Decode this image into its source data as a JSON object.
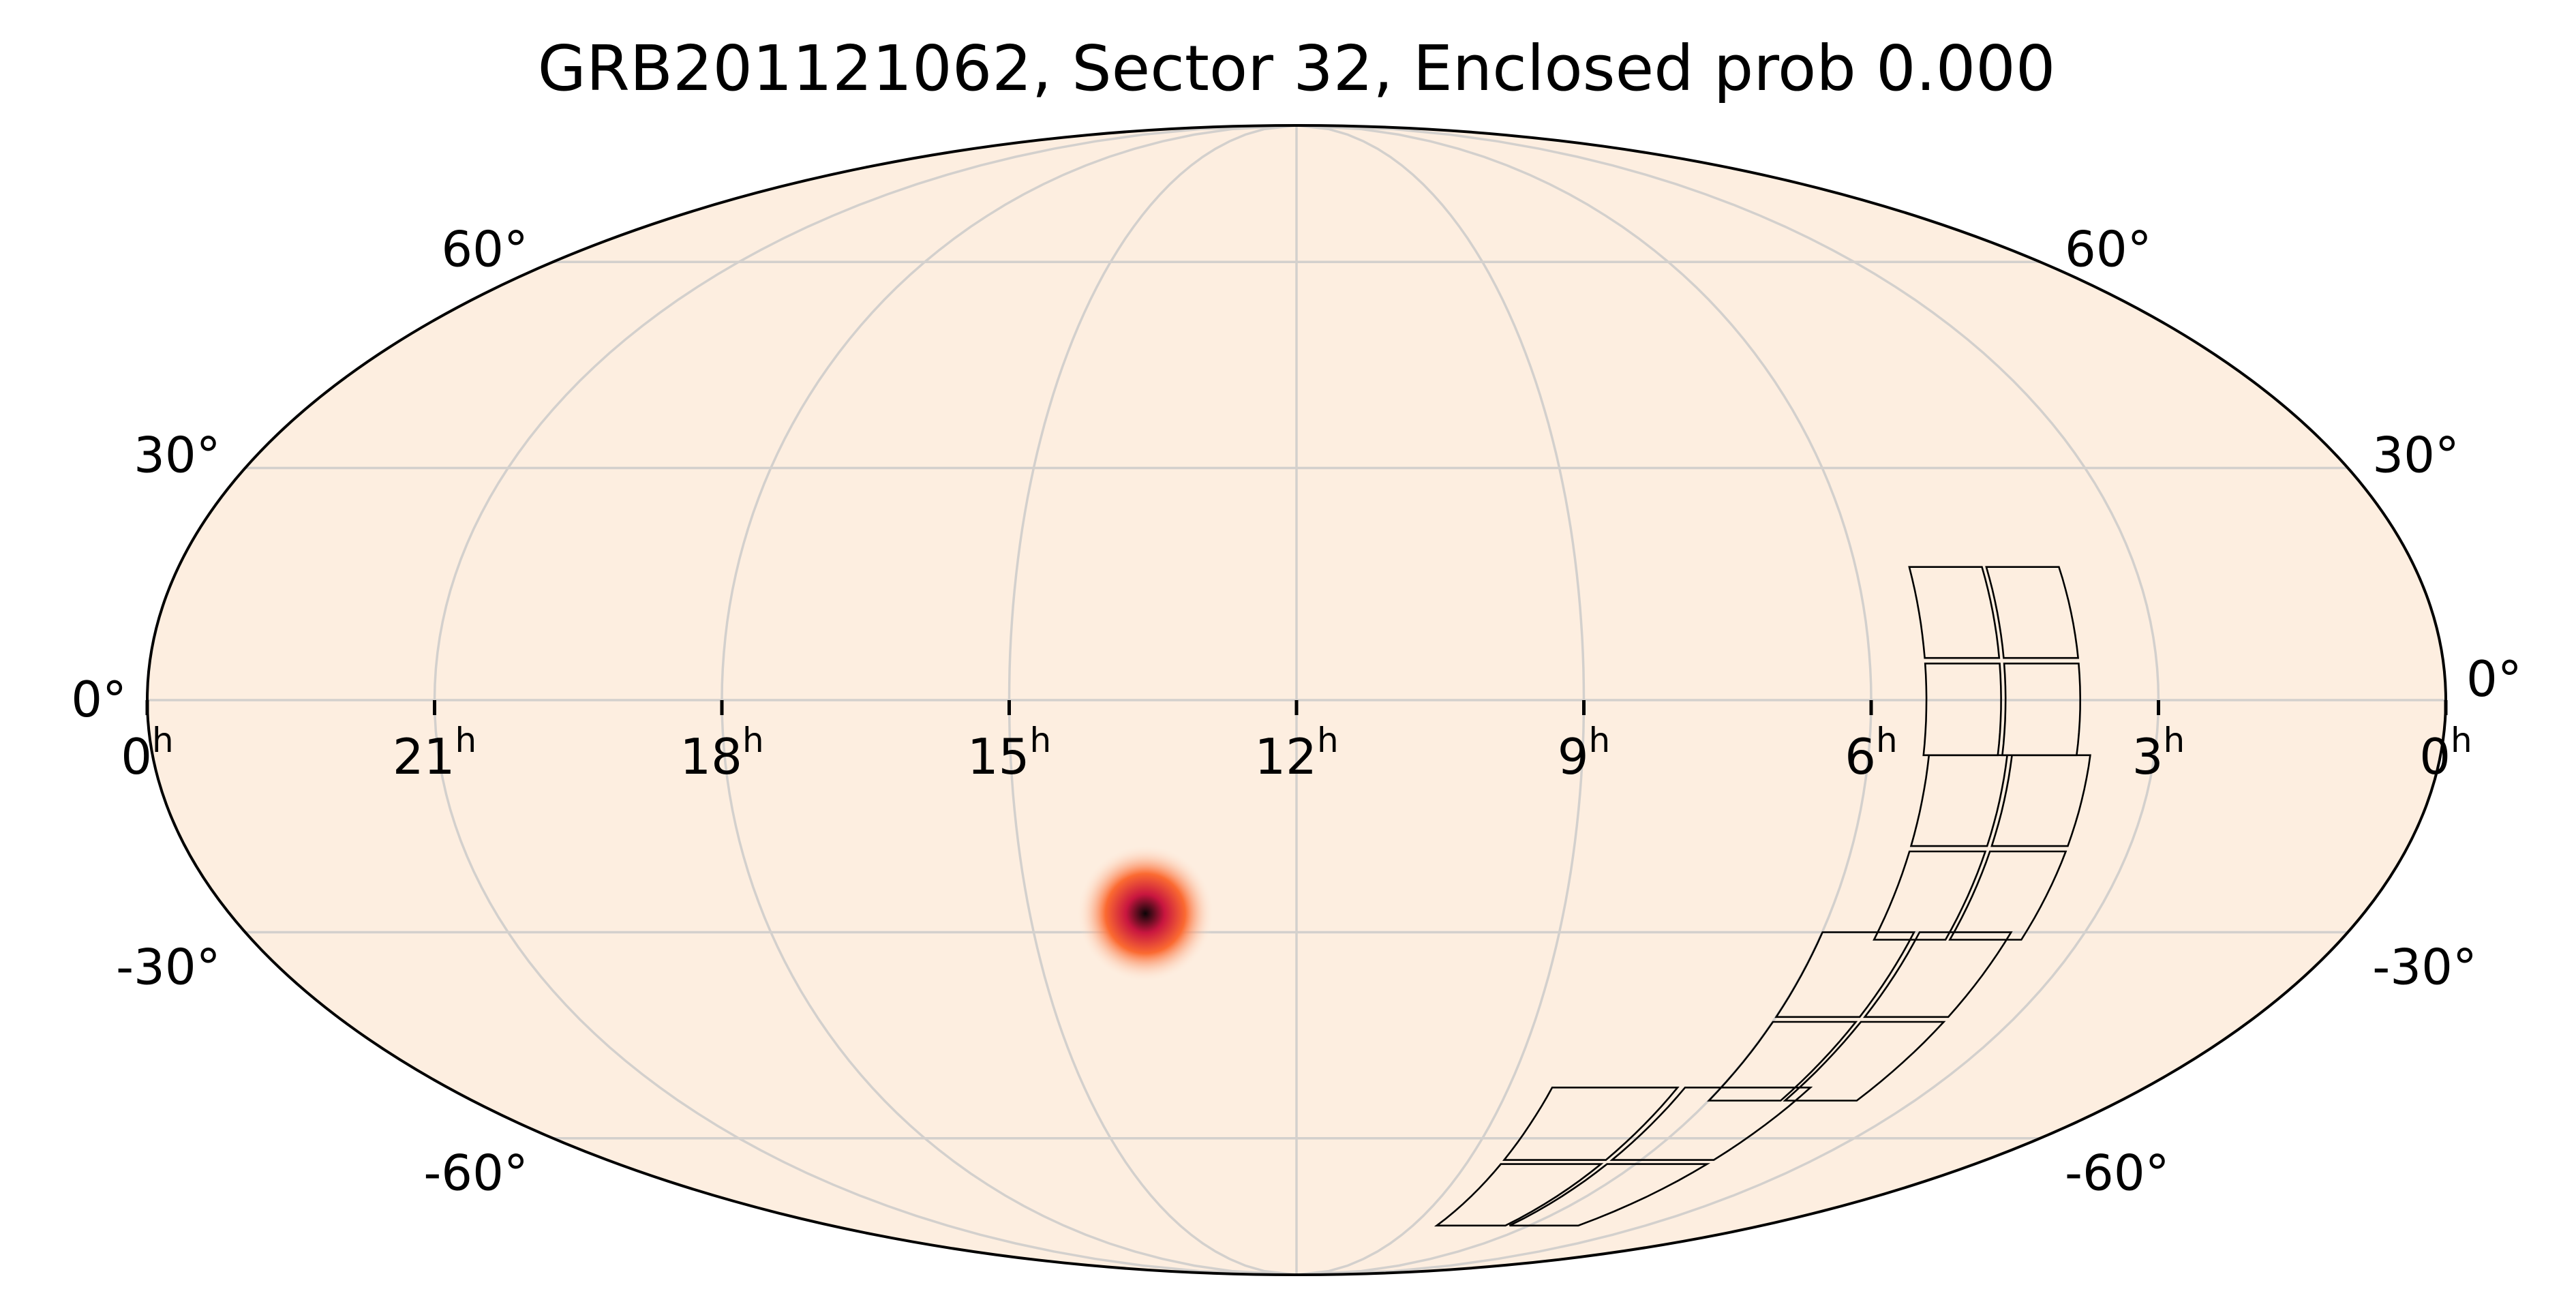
{
  "chart_data": {
    "type": "heatmap",
    "projection": "mollweide",
    "title": "GRB201121062, Sector 32, Enclosed prob 0.000",
    "ra_ticks": [
      {
        "ra": 0,
        "label": "0",
        "unit": "h",
        "side": "left"
      },
      {
        "ra": 21,
        "label": "21",
        "unit": "h"
      },
      {
        "ra": 18,
        "label": "18",
        "unit": "h"
      },
      {
        "ra": 15,
        "label": "15",
        "unit": "h"
      },
      {
        "ra": 12,
        "label": "12",
        "unit": "h"
      },
      {
        "ra": 9,
        "label": "9",
        "unit": "h"
      },
      {
        "ra": 6,
        "label": "6",
        "unit": "h"
      },
      {
        "ra": 3,
        "label": "3",
        "unit": "h"
      },
      {
        "ra": 0,
        "label": "0",
        "unit": "h",
        "side": "right"
      }
    ],
    "dec_ticks": [
      {
        "dec": 60,
        "label": "60°"
      },
      {
        "dec": 30,
        "label": "30°"
      },
      {
        "dec": 0,
        "label": "0°"
      },
      {
        "dec": -30,
        "label": "-30°"
      },
      {
        "dec": -60,
        "label": "-60°"
      }
    ],
    "grid": true,
    "colors": {
      "background": "#fdeee0",
      "grid": "#d3d0cd",
      "outline": "#000000",
      "footprint": "#000000",
      "hot_core": "#0c0507",
      "hot_mid": "#c8163f",
      "hot_outer": "#fb6a31"
    },
    "probability_peak": {
      "ra_hours": 13.7,
      "dec_deg": -27.5,
      "radius_deg": 9
    },
    "sector": {
      "camera_centers": [
        {
          "ra": 4.62,
          "dec": 5
        },
        {
          "ra": 4.52,
          "dec": -19
        },
        {
          "ra": 4.92,
          "dec": -42
        },
        {
          "ra": 6.56,
          "dec": -64
        }
      ],
      "width_deg": 24,
      "height_deg": 24
    }
  }
}
